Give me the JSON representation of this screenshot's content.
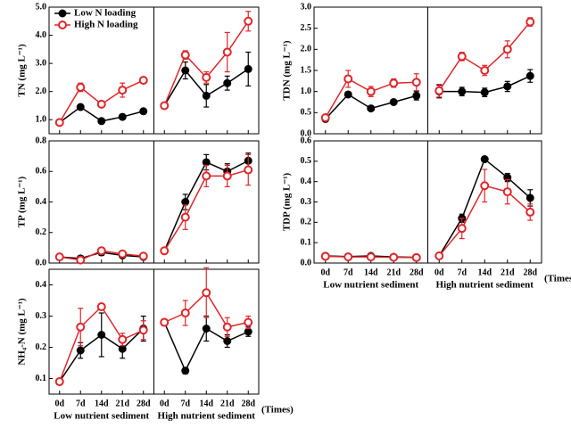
{
  "chart_data": [
    {
      "type": "line",
      "ylabel": "TN (mg L⁻¹)",
      "ylim": [
        0.5,
        5
      ],
      "yticks": [
        {
          "value": 1,
          "label": "1.0"
        },
        {
          "value": 2,
          "label": "2.0"
        },
        {
          "value": 3,
          "label": "3.0"
        },
        {
          "value": 4,
          "label": "4.0"
        },
        {
          "value": 5,
          "label": "5.0"
        }
      ],
      "legend": [
        {
          "name": "Low N loading",
          "color": "#000000"
        },
        {
          "name": "High N loading",
          "color": "#e0262a"
        }
      ],
      "panels": [
        {
          "series": [
            {
              "color": "#000000",
              "values": [
                0.9,
                1.45,
                0.95,
                1.1,
                1.3
              ],
              "errors": [
                0.05,
                0.08,
                0.05,
                0.05,
                0.05
              ]
            },
            {
              "color": "#e0262a",
              "values": [
                0.9,
                2.15,
                1.55,
                2.05,
                2.4
              ],
              "errors": [
                0.05,
                0.15,
                0.08,
                0.25,
                0.1
              ]
            }
          ]
        },
        {
          "series": [
            {
              "color": "#000000",
              "values": [
                1.5,
                2.75,
                1.85,
                2.3,
                2.8
              ],
              "errors": [
                0.05,
                0.3,
                0.4,
                0.25,
                0.6
              ]
            },
            {
              "color": "#e0262a",
              "values": [
                1.5,
                3.3,
                2.5,
                3.4,
                4.5
              ],
              "errors": [
                0.05,
                0.15,
                0.2,
                0.7,
                0.35
              ]
            }
          ]
        }
      ]
    },
    {
      "type": "line",
      "ylabel": "TDN (mg L⁻¹)",
      "ylim": [
        0,
        3
      ],
      "yticks": [
        {
          "value": 0,
          "label": "0.0"
        },
        0.5,
        {
          "value": 1,
          "label": "1.0"
        },
        1.5,
        {
          "value": 2,
          "label": "2.0"
        },
        2.5,
        {
          "value": 3,
          "label": "3.0"
        }
      ],
      "panels": [
        {
          "series": [
            {
              "color": "#000000",
              "values": [
                0.35,
                0.93,
                0.6,
                0.75,
                0.9
              ],
              "errors": [
                0.03,
                0.05,
                0.05,
                0.05,
                0.1
              ]
            },
            {
              "color": "#e0262a",
              "values": [
                0.38,
                1.3,
                1.0,
                1.2,
                1.22
              ],
              "errors": [
                0.03,
                0.2,
                0.12,
                0.1,
                0.2
              ]
            }
          ]
        },
        {
          "series": [
            {
              "color": "#000000",
              "values": [
                1.0,
                1.0,
                0.98,
                1.12,
                1.37
              ],
              "errors": [
                0.15,
                0.1,
                0.1,
                0.12,
                0.15
              ]
            },
            {
              "color": "#e0262a",
              "values": [
                1.02,
                1.83,
                1.5,
                2.0,
                2.65
              ],
              "errors": [
                0.15,
                0.1,
                0.12,
                0.2,
                0.1
              ]
            }
          ]
        }
      ]
    },
    {
      "type": "line",
      "ylabel": "TP (mg L⁻¹)",
      "ylim": [
        0,
        0.8
      ],
      "yticks": [
        {
          "value": 0,
          "label": "0.0"
        },
        0.2,
        0.4,
        0.6,
        0.8
      ],
      "panels": [
        {
          "series": [
            {
              "color": "#000000",
              "values": [
                0.04,
                0.03,
                0.07,
                0.05,
                0.04
              ],
              "errors": [
                0.01,
                0.01,
                0.02,
                0.01,
                0.01
              ]
            },
            {
              "color": "#e0262a",
              "values": [
                0.04,
                0.02,
                0.08,
                0.06,
                0.045
              ],
              "errors": [
                0.01,
                0.01,
                0.02,
                0.01,
                0.01
              ]
            }
          ]
        },
        {
          "series": [
            {
              "color": "#000000",
              "values": [
                0.08,
                0.4,
                0.66,
                0.6,
                0.67
              ],
              "errors": [
                0.01,
                0.05,
                0.05,
                0.05,
                0.05
              ]
            },
            {
              "color": "#e0262a",
              "values": [
                0.08,
                0.3,
                0.57,
                0.57,
                0.61
              ],
              "errors": [
                0.01,
                0.08,
                0.07,
                0.07,
                0.1
              ]
            }
          ]
        }
      ]
    },
    {
      "type": "line",
      "ylabel": "TDP (mg L⁻¹)",
      "ylim": [
        0,
        0.6
      ],
      "yticks": [
        {
          "value": 0,
          "label": "0.0"
        },
        0.1,
        0.2,
        0.3,
        0.4,
        0.5,
        0.6
      ],
      "categories": [
        "0d",
        "7d",
        "14d",
        "21d",
        "28d"
      ],
      "panel_labels": [
        "Low nutrient sediment",
        "High nutrient sediment"
      ],
      "xlabel": "(Times",
      "panels": [
        {
          "series": [
            {
              "color": "#000000",
              "values": [
                0.035,
                0.032,
                0.035,
                0.03,
                0.028
              ],
              "errors": [
                0.005,
                0.005,
                0.005,
                0.005,
                0.005
              ]
            },
            {
              "color": "#e0262a",
              "values": [
                0.033,
                0.03,
                0.03,
                0.028,
                0.027
              ],
              "errors": [
                0.005,
                0.005,
                0.005,
                0.005,
                0.005
              ]
            }
          ]
        },
        {
          "series": [
            {
              "color": "#000000",
              "values": [
                0.035,
                0.22,
                0.51,
                0.42,
                0.32
              ],
              "errors": [
                0.005,
                0.02,
                0.01,
                0.02,
                0.04
              ]
            },
            {
              "color": "#e0262a",
              "values": [
                0.035,
                0.17,
                0.38,
                0.35,
                0.25
              ],
              "errors": [
                0.005,
                0.05,
                0.08,
                0.06,
                0.04
              ]
            }
          ]
        }
      ]
    },
    {
      "type": "line",
      "ylabel": "NH₄-N (mg L⁻¹)",
      "ylim": [
        0.05,
        0.45
      ],
      "yticks": [
        0.1,
        0.2,
        0.3,
        0.4
      ],
      "categories": [
        "0d",
        "7d",
        "14d",
        "21d",
        "28d"
      ],
      "panel_labels": [
        "Low nutrient sediment",
        "High nutrient sediment"
      ],
      "xlabel": "(Times)",
      "panels": [
        {
          "series": [
            {
              "color": "#000000",
              "values": [
                0.09,
                0.19,
                0.24,
                0.195,
                0.26
              ],
              "errors": [
                0.01,
                0.025,
                0.07,
                0.03,
                0.04
              ]
            },
            {
              "color": "#e0262a",
              "values": [
                0.09,
                0.265,
                0.33,
                0.225,
                0.255
              ],
              "errors": [
                0.01,
                0.06,
                0.01,
                0.02,
                0.03
              ]
            }
          ]
        },
        {
          "series": [
            {
              "color": "#000000",
              "values": [
                0.28,
                0.125,
                0.26,
                0.22,
                0.25
              ],
              "errors": [
                0.01,
                0.01,
                0.04,
                0.02,
                0.015
              ]
            },
            {
              "color": "#e0262a",
              "values": [
                0.28,
                0.31,
                0.375,
                0.265,
                0.28
              ],
              "errors": [
                0.01,
                0.04,
                0.08,
                0.03,
                0.02
              ]
            }
          ]
        }
      ]
    }
  ]
}
